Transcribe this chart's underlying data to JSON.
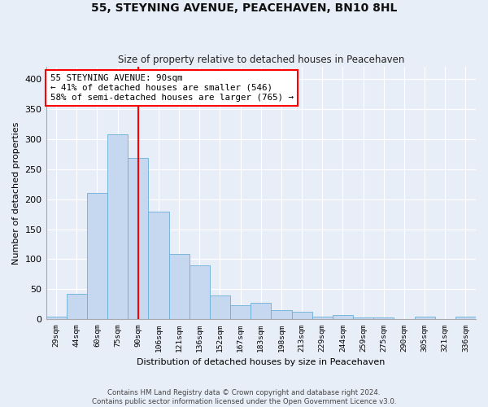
{
  "title": "55, STEYNING AVENUE, PEACEHAVEN, BN10 8HL",
  "subtitle": "Size of property relative to detached houses in Peacehaven",
  "xlabel": "Distribution of detached houses by size in Peacehaven",
  "ylabel": "Number of detached properties",
  "bar_color": "#c5d8f0",
  "bar_edge_color": "#6baed6",
  "background_color": "#e8eef8",
  "grid_color": "#ffffff",
  "bins": [
    "29sqm",
    "44sqm",
    "60sqm",
    "75sqm",
    "90sqm",
    "106sqm",
    "121sqm",
    "136sqm",
    "152sqm",
    "167sqm",
    "183sqm",
    "198sqm",
    "213sqm",
    "229sqm",
    "244sqm",
    "259sqm",
    "275sqm",
    "290sqm",
    "305sqm",
    "321sqm",
    "336sqm"
  ],
  "values": [
    5,
    42,
    210,
    308,
    269,
    179,
    109,
    90,
    40,
    23,
    27,
    15,
    13,
    5,
    7,
    3,
    3,
    0,
    4,
    0,
    4
  ],
  "property_line_x": 4,
  "annotation_line1": "55 STEYNING AVENUE: 90sqm",
  "annotation_line2": "← 41% of detached houses are smaller (546)",
  "annotation_line3": "58% of semi-detached houses are larger (765) →",
  "annotation_box_color": "white",
  "annotation_box_edge_color": "red",
  "line_color": "red",
  "ylim": [
    0,
    420
  ],
  "yticks": [
    0,
    50,
    100,
    150,
    200,
    250,
    300,
    350,
    400
  ],
  "footnote1": "Contains HM Land Registry data © Crown copyright and database right 2024.",
  "footnote2": "Contains public sector information licensed under the Open Government Licence v3.0."
}
